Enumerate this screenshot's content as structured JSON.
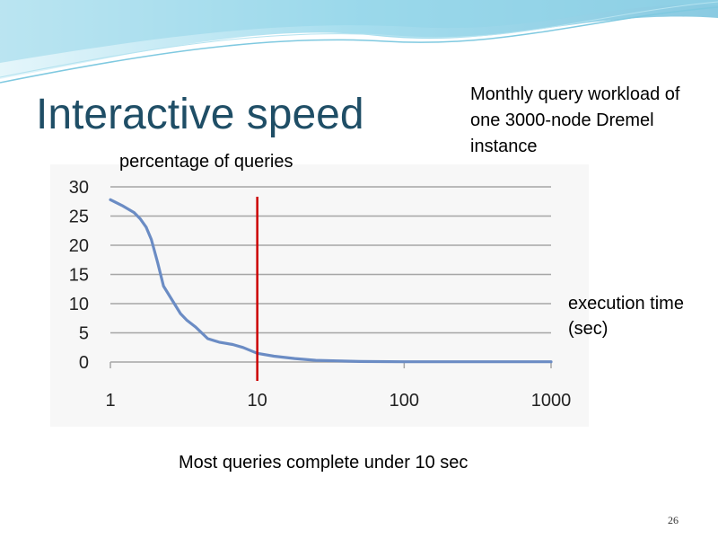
{
  "slide": {
    "title": "Interactive speed",
    "workload_note": "Monthly query workload of one 3000-node Dremel instance",
    "caption": "Most queries complete under 10 sec",
    "slide_number": "26"
  },
  "colors": {
    "title": "#1f4e66",
    "series_line": "#6b8cc4",
    "threshold_marker": "#cc0000",
    "gridline": "#a6a6a6",
    "decor_wave": "#8fd3e8"
  },
  "chart_data": {
    "type": "line",
    "ylabel": "percentage of queries",
    "xlabel": "execution time (sec)",
    "x_scale": "log10",
    "xlim": [
      1,
      1000
    ],
    "ylim": [
      0,
      30
    ],
    "x_ticks": [
      "1",
      "10",
      "100",
      "1000"
    ],
    "y_ticks": [
      "0",
      "5",
      "10",
      "15",
      "20",
      "25",
      "30"
    ],
    "grid": "horizontal",
    "series": [
      {
        "x": [
          1,
          1.2,
          1.45,
          1.6,
          1.75,
          1.9,
          2.1,
          2.3,
          3.0,
          3.3,
          3.8,
          4.6,
          5.5,
          6.8,
          8.0,
          10,
          13,
          18,
          25,
          35,
          50,
          100,
          200,
          500,
          1000
        ],
        "y": [
          27.8,
          26.8,
          25.6,
          24.5,
          23.1,
          21.0,
          17.0,
          13.0,
          8.3,
          7.2,
          6.0,
          4.0,
          3.4,
          3.0,
          2.5,
          1.5,
          1.0,
          0.6,
          0.3,
          0.2,
          0.1,
          0.05,
          0.05,
          0.05,
          0.05
        ]
      }
    ],
    "threshold_x": 10
  }
}
